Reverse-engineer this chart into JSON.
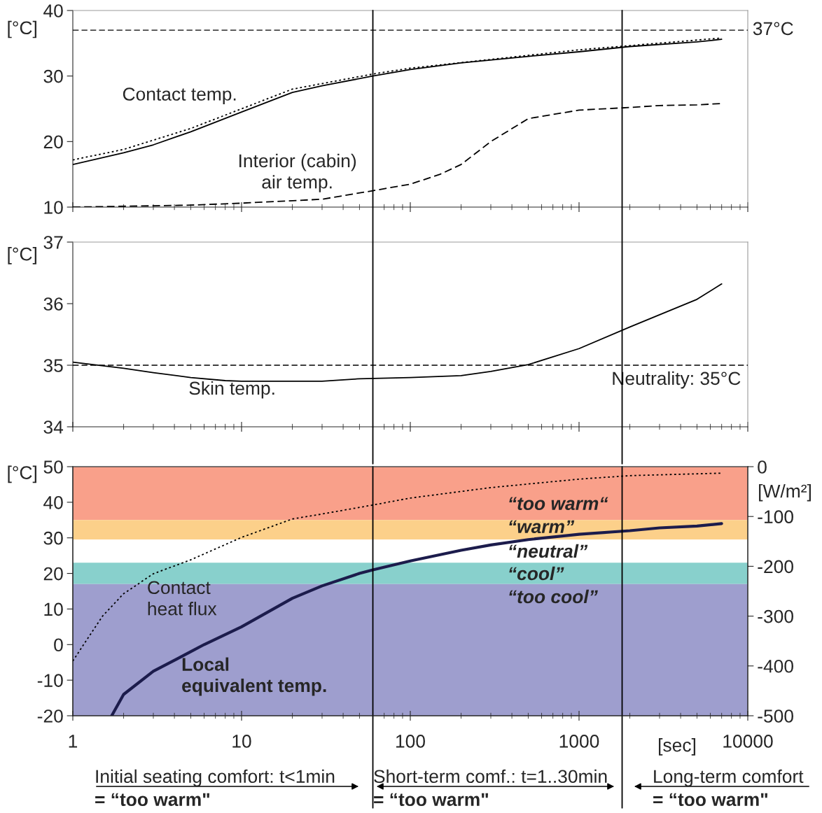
{
  "chart_data": [
    {
      "type": "line",
      "ylabel": "[°C]",
      "xlim": [
        1,
        10000
      ],
      "xticks": [
        1,
        10,
        100,
        1000,
        10000
      ],
      "ylim": [
        10,
        40
      ],
      "yticks": [
        10,
        20,
        30,
        40
      ],
      "log": "x",
      "tick_labels": "y",
      "grid": false,
      "legend": false,
      "series": [
        {
          "name": "Contact temp.",
          "color": "#000000",
          "line_style": "solid",
          "x": [
            1,
            2,
            3,
            5,
            10,
            20,
            30,
            60,
            100,
            200,
            500,
            1000,
            2000,
            5000,
            7000
          ],
          "values": [
            16.5,
            18.3,
            19.5,
            21.5,
            24.5,
            27.5,
            28.5,
            30,
            31,
            32,
            33,
            33.7,
            34.5,
            35.2,
            35.6
          ]
        },
        {
          "color": "#000000",
          "line_style": "dotted",
          "x": [
            1,
            2,
            5,
            10,
            20,
            60,
            100,
            1000,
            7000
          ],
          "values": [
            17.2,
            18.8,
            22,
            25,
            28,
            30.3,
            31.2,
            34,
            35.8
          ]
        },
        {
          "name": "Interior (cabin)\nair temp.",
          "color": "#000000",
          "line_style": "dashed",
          "x": [
            1,
            3,
            5,
            10,
            30,
            60,
            100,
            150,
            200,
            300,
            500,
            1000,
            2000,
            3000,
            5000,
            7000
          ],
          "values": [
            10,
            10.2,
            10.3,
            10.6,
            11.2,
            12.5,
            13.5,
            15,
            16.5,
            20,
            23.5,
            24.8,
            25.2,
            25.5,
            25.6,
            25.8
          ]
        }
      ],
      "ref_lines": [
        {
          "axis": "y",
          "value": 37,
          "label": "37°C",
          "line_style": "dashed"
        },
        {
          "axis": "x",
          "value": 60,
          "line_style": "solid"
        },
        {
          "axis": "x",
          "value": 1800,
          "line_style": "solid"
        }
      ]
    },
    {
      "type": "line",
      "ylabel": "[°C]",
      "xlim": [
        1,
        10000
      ],
      "xticks": [
        1,
        10,
        100,
        1000,
        10000
      ],
      "ylim": [
        34,
        37
      ],
      "yticks": [
        34,
        35,
        36,
        37
      ],
      "log": "x",
      "tick_labels": "y",
      "grid": false,
      "legend": false,
      "series": [
        {
          "name": "Skin temp.",
          "color": "#000000",
          "line_style": "solid",
          "x": [
            1,
            2,
            3,
            5,
            8,
            10,
            30,
            50,
            100,
            200,
            300,
            500,
            1000,
            2000,
            3000,
            5000,
            7000
          ],
          "values": [
            35.05,
            34.95,
            34.88,
            34.8,
            34.75,
            34.74,
            34.74,
            34.78,
            34.8,
            34.83,
            34.9,
            35.01,
            35.27,
            35.62,
            35.82,
            36.07,
            36.32
          ]
        }
      ],
      "ref_lines": [
        {
          "axis": "y",
          "value": 35,
          "label": "Neutrality: 35°C",
          "line_style": "dashed"
        },
        {
          "axis": "x",
          "value": 60,
          "line_style": "solid"
        },
        {
          "axis": "x",
          "value": 1800,
          "line_style": "solid"
        }
      ]
    },
    {
      "type": "line",
      "ylabel": "[°C]",
      "y2label": "[W/m²]",
      "xlabel": "[sec]",
      "xlim": [
        1,
        10000
      ],
      "xticks": [
        1,
        10,
        100,
        1000,
        10000
      ],
      "ylim": [
        -20,
        50
      ],
      "yticks": [
        -20,
        -10,
        0,
        10,
        20,
        30,
        40,
        50
      ],
      "y2lim": [
        -500,
        0
      ],
      "y2ticks": [
        -500,
        -400,
        -300,
        -200,
        -100,
        0
      ],
      "log": "x",
      "grid": false,
      "legend": false,
      "series": [
        {
          "name": "Contact heat flux",
          "color": "#000000",
          "line_style": "dotted",
          "axis": "y2",
          "x": [
            1,
            1.5,
            2,
            3,
            5,
            10,
            20,
            30,
            60,
            100,
            300,
            1000,
            2000,
            7000
          ],
          "values": [
            -390,
            -300,
            -255,
            -215,
            -187,
            -142,
            -105,
            -95,
            -77,
            -63,
            -42,
            -25,
            -18,
            -13
          ]
        },
        {
          "name": "Local equivalent temp.",
          "color": "#1c1c4c",
          "line_style": "solid",
          "x": [
            1.7,
            2,
            3,
            5,
            6,
            10,
            20,
            30,
            50,
            60,
            100,
            200,
            300,
            500,
            1000,
            2000,
            3000,
            5000,
            7000
          ],
          "values": [
            -20,
            -14,
            -7.5,
            -2,
            0,
            5,
            13,
            16.5,
            20,
            21,
            23.5,
            26.5,
            28,
            29.5,
            31,
            32,
            32.8,
            33.3,
            34
          ]
        }
      ],
      "bands": [
        {
          "axis": "y",
          "from": 35,
          "to": 50,
          "label": "“too warm“",
          "color": "#f9a08a"
        },
        {
          "axis": "y",
          "from": 29.5,
          "to": 35,
          "label": "“warm”",
          "color": "#fcd08a"
        },
        {
          "axis": "y",
          "from": 23,
          "to": 29.5,
          "label": "“neutral”",
          "color": "#ffffff"
        },
        {
          "axis": "y",
          "from": 17,
          "to": 23,
          "label": "“cool”",
          "color": "#88d0cc"
        },
        {
          "axis": "y",
          "from": -20,
          "to": 17,
          "label": "“too cool”",
          "color": "#9e9ece"
        }
      ],
      "ref_lines": [
        {
          "axis": "x",
          "value": 60,
          "line_style": "solid"
        },
        {
          "axis": "x",
          "value": 1800,
          "line_style": "solid"
        }
      ],
      "annotations": [
        "Initial seating comfort: t<1min",
        "= “too warm\"",
        "Short-term comf.: t=1..30min",
        "= “too warm\"",
        "Long-term comfort",
        "= “too warm\""
      ]
    }
  ]
}
